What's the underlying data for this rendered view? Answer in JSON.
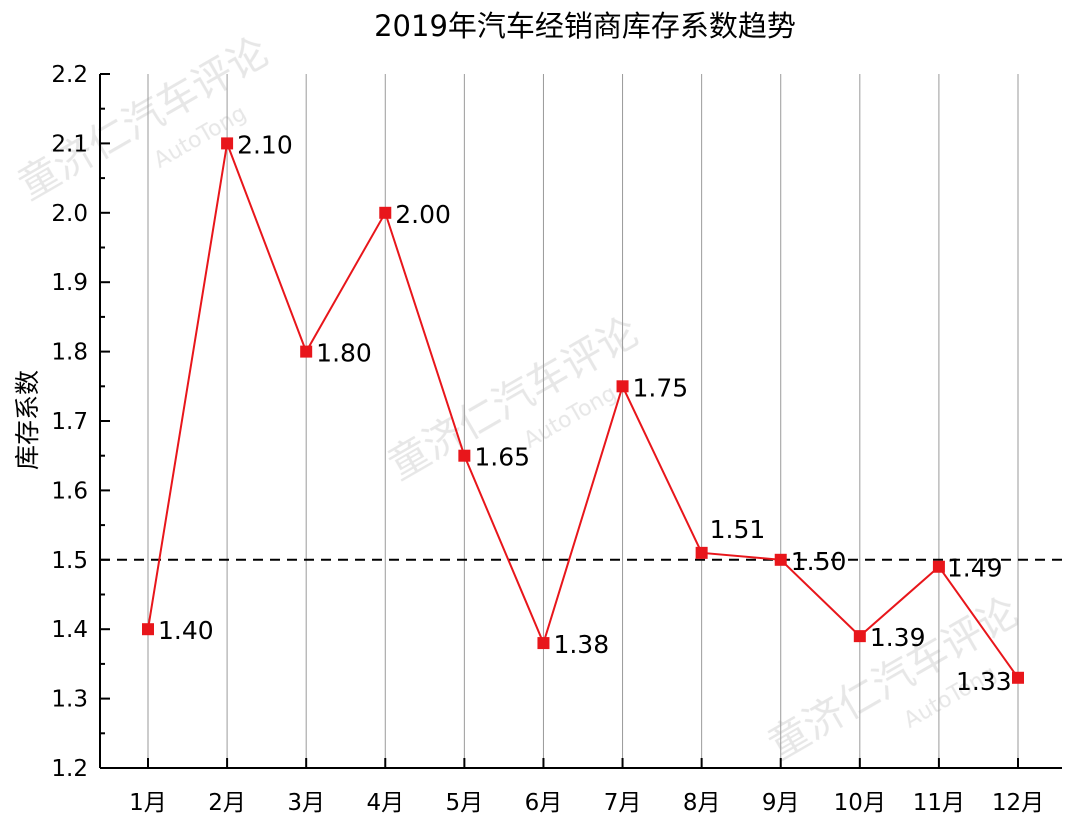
{
  "chart_data": {
    "type": "line",
    "title": "2019年汽车经销商库存系数趋势",
    "xlabel": "",
    "ylabel": "库存系数",
    "categories": [
      "1月",
      "2月",
      "3月",
      "4月",
      "5月",
      "6月",
      "7月",
      "8月",
      "9月",
      "10月",
      "11月",
      "12月"
    ],
    "series": [
      {
        "values": [
          1.4,
          2.1,
          1.8,
          2.0,
          1.65,
          1.38,
          1.75,
          1.51,
          1.5,
          1.39,
          1.49,
          1.33
        ],
        "labels": [
          "1.40",
          "2.10",
          "1.80",
          "2.00",
          "1.65",
          "1.38",
          "1.75",
          "1.51",
          "1.50",
          "1.39",
          "1.49",
          "1.33"
        ],
        "color": "#e8161b"
      }
    ],
    "ylim": [
      1.2,
      2.2
    ],
    "yticks": [
      "1.2",
      "1.3",
      "1.4",
      "1.5",
      "1.6",
      "1.7",
      "1.8",
      "1.9",
      "2.0",
      "2.1",
      "2.2"
    ],
    "reference_line": {
      "value": 1.5,
      "style": "dashed",
      "color": "#000000"
    },
    "grid": {
      "vertical": true,
      "horizontal": false
    },
    "watermark": [
      "童济仁汽车评论",
      "AutoTong"
    ]
  }
}
